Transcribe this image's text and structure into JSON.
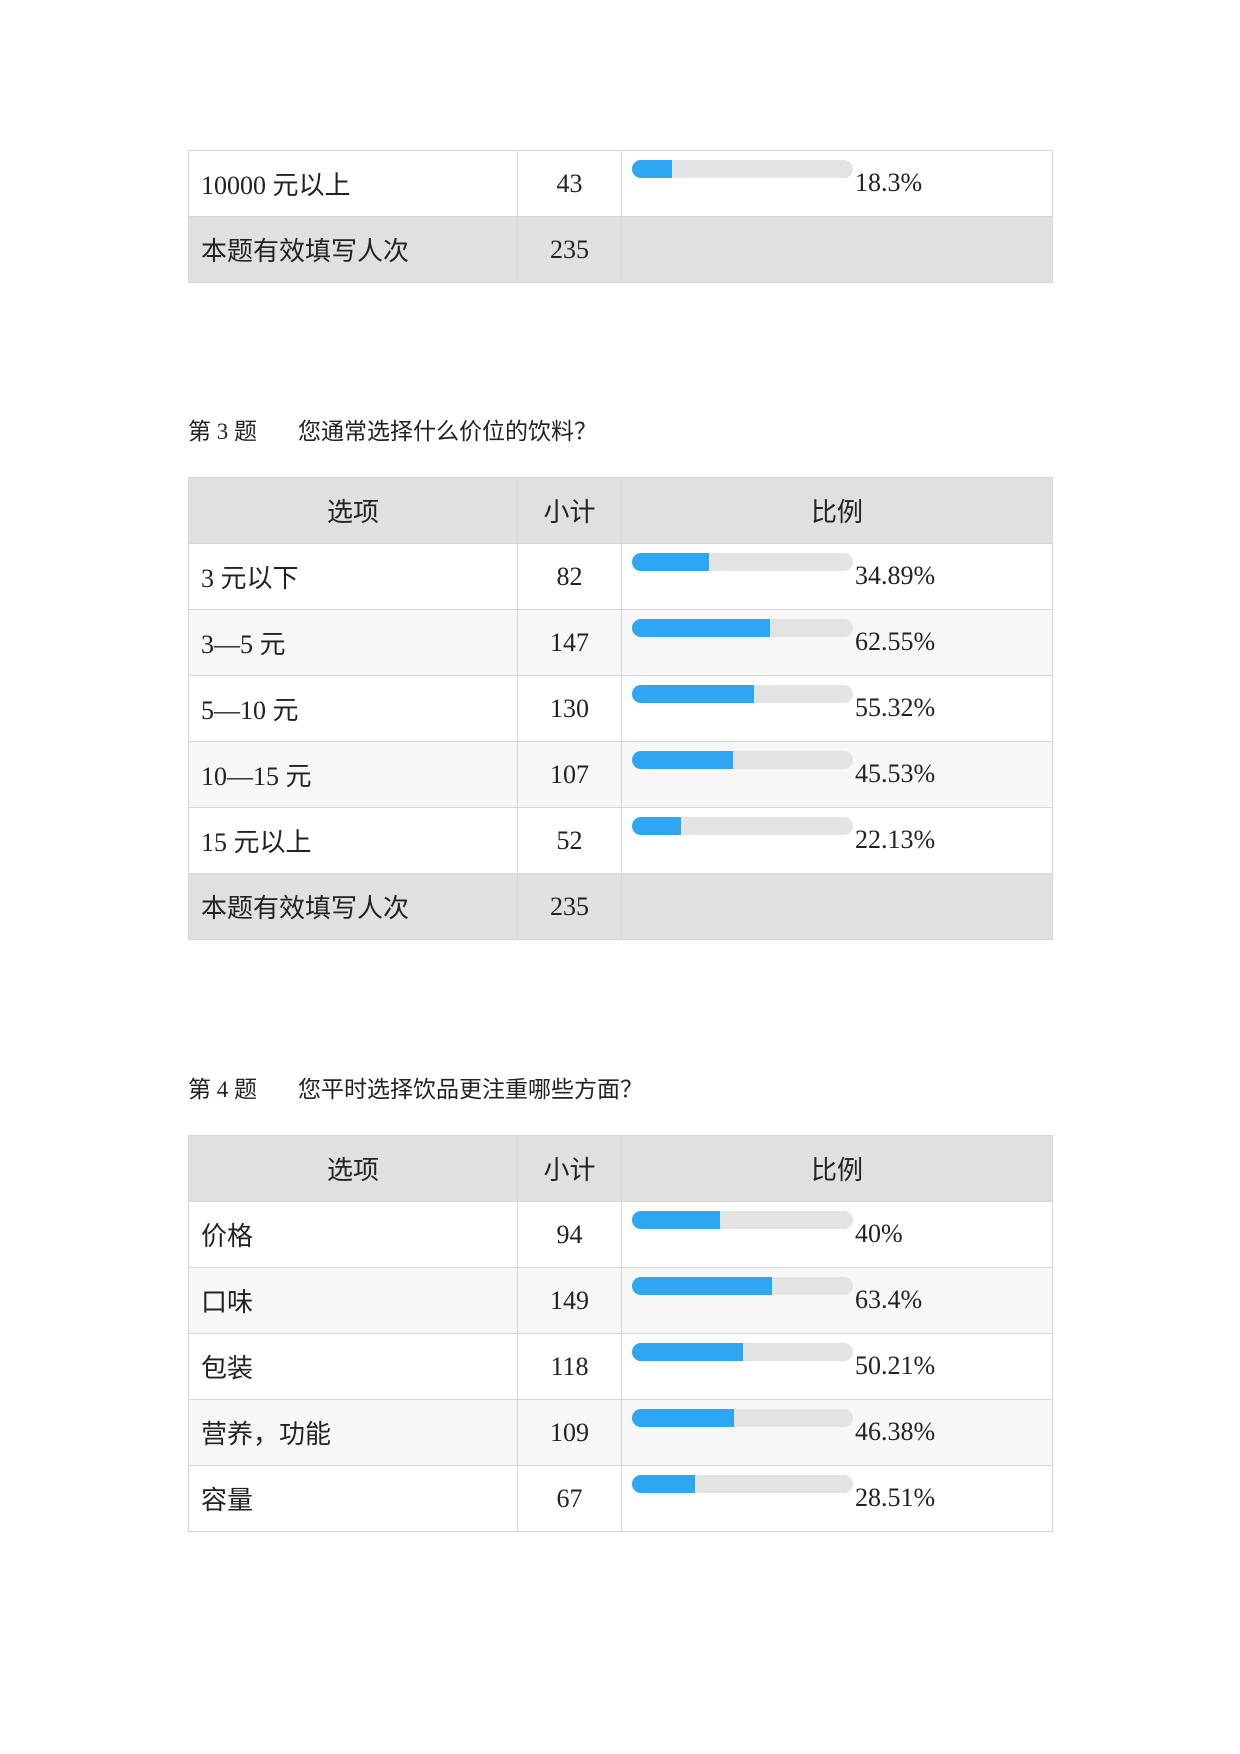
{
  "sections": [
    {
      "table": {
        "rows": [
          {
            "option": "10000 元以上",
            "count": 43,
            "ratio": 18.3,
            "ratio_label": "18.3%"
          }
        ],
        "total": {
          "label": "本题有效填写人次",
          "count": 235
        }
      }
    },
    {
      "question": {
        "number": "第 3 题",
        "text": "您通常选择什么价位的饮料？"
      },
      "table": {
        "headers": [
          "选项",
          "小计",
          "比例"
        ],
        "rows": [
          {
            "option": "3 元以下",
            "count": 82,
            "ratio": 34.89,
            "ratio_label": "34.89%"
          },
          {
            "option": "3—5 元",
            "count": 147,
            "ratio": 62.55,
            "ratio_label": "62.55%"
          },
          {
            "option": "5—10 元",
            "count": 130,
            "ratio": 55.32,
            "ratio_label": "55.32%"
          },
          {
            "option": "10—15 元",
            "count": 107,
            "ratio": 45.53,
            "ratio_label": "45.53%"
          },
          {
            "option": "15 元以上",
            "count": 52,
            "ratio": 22.13,
            "ratio_label": "22.13%"
          }
        ],
        "total": {
          "label": "本题有效填写人次",
          "count": 235
        }
      }
    },
    {
      "question": {
        "number": "第 4 题",
        "text": "您平时选择饮品更注重哪些方面？"
      },
      "table": {
        "headers": [
          "选项",
          "小计",
          "比例"
        ],
        "rows": [
          {
            "option": "价格",
            "count": 94,
            "ratio": 40,
            "ratio_label": "40%"
          },
          {
            "option": "口味",
            "count": 149,
            "ratio": 63.4,
            "ratio_label": "63.4%"
          },
          {
            "option": "包装",
            "count": 118,
            "ratio": 50.21,
            "ratio_label": "50.21%"
          },
          {
            "option": "营养，功能",
            "count": 109,
            "ratio": 46.38,
            "ratio_label": "46.38%"
          },
          {
            "option": "容量",
            "count": 67,
            "ratio": 28.51,
            "ratio_label": "28.51%"
          }
        ]
      }
    }
  ]
}
